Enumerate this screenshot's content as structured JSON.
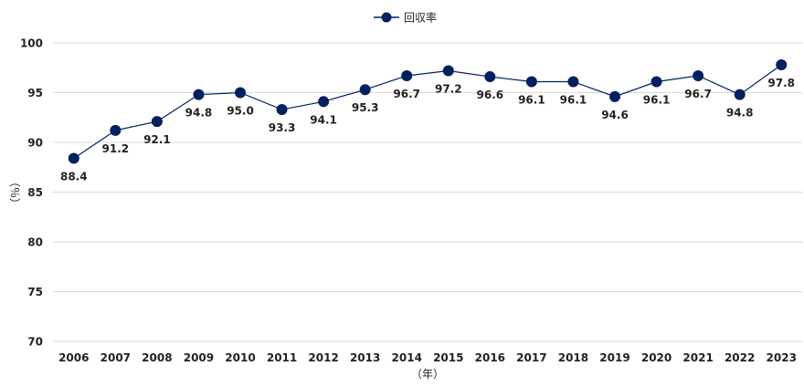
{
  "chart_data": {
    "type": "line",
    "categories": [
      "2006",
      "2007",
      "2008",
      "2009",
      "2010",
      "2011",
      "2012",
      "2013",
      "2014",
      "2015",
      "2016",
      "2017",
      "2018",
      "2019",
      "2020",
      "2021",
      "2022",
      "2023"
    ],
    "series": [
      {
        "name": "回収率",
        "values": [
          88.4,
          91.2,
          92.1,
          94.8,
          95.0,
          93.3,
          94.1,
          95.3,
          96.7,
          97.2,
          96.6,
          96.1,
          96.1,
          94.6,
          96.1,
          96.7,
          94.8,
          97.8
        ],
        "labels": [
          "88.4",
          "91.2",
          "92.1",
          "94.8",
          "95.0",
          "93.3",
          "94.1",
          "95.3",
          "96.7",
          "97.2",
          "96.6",
          "96.1",
          "96.1",
          "94.6",
          "96.1",
          "96.7",
          "94.8",
          "97.8"
        ],
        "color": "#002060"
      }
    ],
    "ylim": [
      70,
      100
    ],
    "yticks": [
      "70",
      "75",
      "80",
      "85",
      "90",
      "95",
      "100"
    ],
    "xlabel": "（年）",
    "ylabel": "（％）",
    "grid": true,
    "legend_position": "top-center"
  }
}
